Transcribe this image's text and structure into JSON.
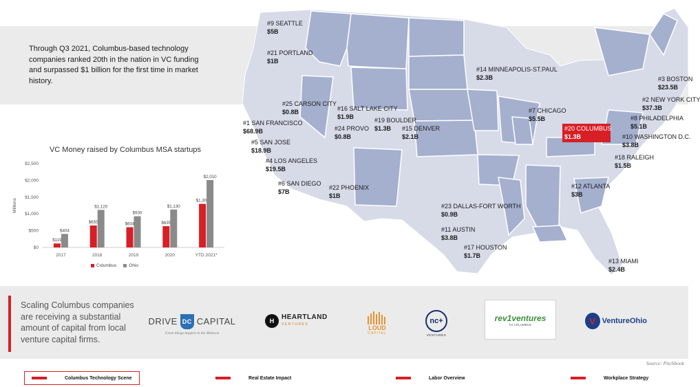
{
  "intro": {
    "text": "Through Q3 2021, Columbus-based technology companies ranked 20th in the nation in VC funding and surpassed $1 billion for the first time in market history."
  },
  "chart_data": {
    "type": "bar",
    "title": "VC Money raised by Columbus MSA startups",
    "ylabel": "Millions",
    "xlabel": "",
    "ylim": [
      0,
      2500
    ],
    "yticks": [
      "$0",
      "$500",
      "$1,000",
      "$1,500",
      "$2,000",
      "$2,500"
    ],
    "categories": [
      "2017",
      "2018",
      "2019",
      "2020",
      "YTD 2021*"
    ],
    "series": [
      {
        "name": "Columbus",
        "values": [
          119,
          655,
          604,
          635,
          1300
        ],
        "labels": [
          "$119",
          "$655",
          "$604",
          "$635",
          "$1,300"
        ]
      },
      {
        "name": "Ohio",
        "values": [
          404,
          1120,
          930,
          1130,
          2010
        ],
        "labels": [
          "$404",
          "$1,120",
          "$930",
          "$1,130",
          "$2,010"
        ]
      }
    ],
    "colors": {
      "Columbus": "#d71f26",
      "Ohio": "#8a8a8a"
    },
    "legend_position": "bottom"
  },
  "map": {
    "colors": {
      "dark": "#a5b0cf",
      "light": "#d7dbe8",
      "highlight": "#d71f26"
    },
    "cities": [
      {
        "rank": "#9 SEATTLE",
        "value": "$5B"
      },
      {
        "rank": "#21 PORTLAND",
        "value": "$1B"
      },
      {
        "rank": "#25 CARSON CITY",
        "value": "$0.8B"
      },
      {
        "rank": "#1 SAN FRANCISCO",
        "value": "$68.9B"
      },
      {
        "rank": "#5 SAN JOSE",
        "value": "$18.9B"
      },
      {
        "rank": "#4 LOS ANGELES",
        "value": "$19.5B"
      },
      {
        "rank": "#6 SAN DIEGO",
        "value": "$7B"
      },
      {
        "rank": "#16 SALT LAKE CITY",
        "value": "$1.9B"
      },
      {
        "rank": "#24 PROVO",
        "value": "$0.8B"
      },
      {
        "rank": "#19 BOULDER",
        "value": "$1.3B"
      },
      {
        "rank": "#15 DENVER",
        "value": "$2.1B"
      },
      {
        "rank": "#22 PHOENIX",
        "value": "$1B"
      },
      {
        "rank": "#14 MINNEAPOLIS-ST.PAUL",
        "value": "$2.3B"
      },
      {
        "rank": "#7 CHICAGO",
        "value": "$5.5B"
      },
      {
        "rank": "#20 COLUMBUS",
        "value": "$1.3B"
      },
      {
        "rank": "#3 BOSTON",
        "value": "$23.5B"
      },
      {
        "rank": "#2 NEW YORK CITY",
        "value": "$37.3B"
      },
      {
        "rank": "#8 PHILADELPHIA",
        "value": "$5.1B"
      },
      {
        "rank": "#10 WASHINGTON D.C.",
        "value": "$3.8B"
      },
      {
        "rank": "#18 RALEIGH",
        "value": "$1.5B"
      },
      {
        "rank": "#12 ATLANTA",
        "value": "$3B"
      },
      {
        "rank": "#23 DALLAS-FORT WORTH",
        "value": "$0.9B"
      },
      {
        "rank": "#11 AUSTIN",
        "value": "$3.8B"
      },
      {
        "rank": "#17 HOUSTON",
        "value": "$1.7B"
      },
      {
        "rank": "#13 MIAMI",
        "value": "$2.4B"
      }
    ]
  },
  "scaling": {
    "text": "Scaling Columbus companies are receiving a substantial amount of capital from local venture capital firms."
  },
  "logos": {
    "drive_left": "DRIVE",
    "drive_right": "CAPITAL",
    "drive_mark": "DC",
    "drive_tagline": "Great things happen in the Midwest",
    "heartland": "HEARTLAND",
    "heartland_sub": "VENTURES",
    "heartland_mark": "H",
    "loud": "LOUD",
    "loud_sub": "CAPITAL",
    "ncplus": "nc+",
    "ncplus_sub": "VENTURES",
    "rev1": "rev1ventures",
    "rev1_sub": "for COLUMBUS",
    "ventureohio": "VentureOhio",
    "ventureohio_mark": "V"
  },
  "source": "Source: Pitchbook",
  "nav": {
    "items": [
      "Columbus Technology Scene",
      "Real Estate Impact",
      "Labor Overview",
      "Workplace Strategy"
    ]
  }
}
